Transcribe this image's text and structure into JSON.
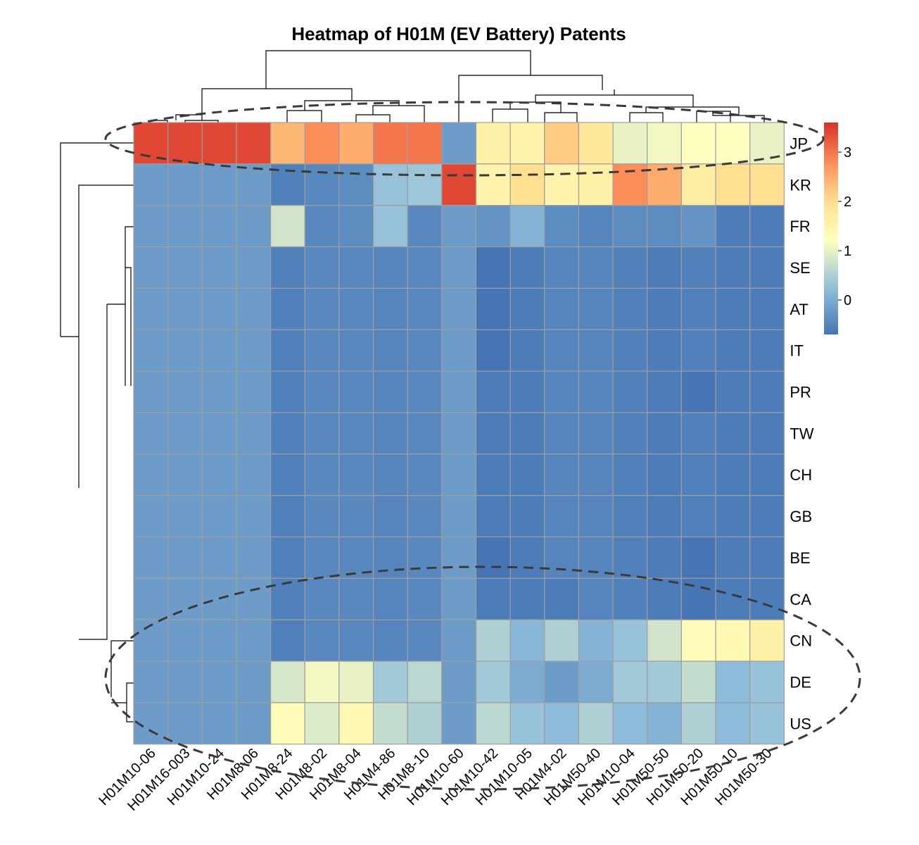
{
  "chart_data": {
    "type": "heatmap",
    "title": "Heatmap of H01M (EV Battery) Patents",
    "rows": [
      "JP",
      "KR",
      "FR",
      "SE",
      "AT",
      "IT",
      "PR",
      "TW",
      "CH",
      "GB",
      "BE",
      "CA",
      "CN",
      "DE",
      "US"
    ],
    "columns": [
      "H01M10-06",
      "H01M16-003",
      "H01M10-24",
      "H01M8-06",
      "H01M8-24",
      "H01M8-02",
      "H01M8-04",
      "H01M4-86",
      "H01M8-10",
      "H01M10-60",
      "H01M10-42",
      "H01M10-05",
      "H01M4-02",
      "H01M50-40",
      "H01M10-04",
      "H01M50-50",
      "H01M50-20",
      "H01M50-10",
      "H01M50-30"
    ],
    "values": [
      [
        3.4,
        3.4,
        3.4,
        3.4,
        2.4,
        2.8,
        2.5,
        3.0,
        3.0,
        -0.2,
        1.6,
        1.5,
        2.2,
        1.8,
        1.0,
        1.1,
        1.2,
        1.2,
        1.0
      ],
      [
        -0.2,
        -0.2,
        -0.2,
        -0.2,
        -0.55,
        -0.45,
        -0.4,
        0.3,
        0.35,
        3.4,
        1.5,
        2.0,
        1.5,
        1.6,
        2.8,
        2.5,
        1.7,
        2.0,
        2.0
      ],
      [
        -0.2,
        -0.2,
        -0.2,
        -0.2,
        0.8,
        -0.45,
        -0.4,
        0.3,
        -0.45,
        -0.2,
        -0.3,
        0.1,
        -0.4,
        -0.5,
        -0.4,
        -0.4,
        -0.3,
        -0.6,
        -0.6
      ],
      [
        -0.2,
        -0.2,
        -0.2,
        -0.2,
        -0.55,
        -0.45,
        -0.45,
        -0.5,
        -0.45,
        -0.2,
        -0.7,
        -0.6,
        -0.5,
        -0.5,
        -0.55,
        -0.6,
        -0.55,
        -0.6,
        -0.6
      ],
      [
        -0.2,
        -0.2,
        -0.2,
        -0.2,
        -0.55,
        -0.45,
        -0.45,
        -0.5,
        -0.45,
        -0.2,
        -0.7,
        -0.6,
        -0.5,
        -0.5,
        -0.55,
        -0.6,
        -0.55,
        -0.6,
        -0.6
      ],
      [
        -0.2,
        -0.2,
        -0.2,
        -0.2,
        -0.55,
        -0.45,
        -0.45,
        -0.5,
        -0.45,
        -0.2,
        -0.7,
        -0.6,
        -0.5,
        -0.5,
        -0.55,
        -0.6,
        -0.55,
        -0.6,
        -0.6
      ],
      [
        -0.2,
        -0.2,
        -0.2,
        -0.2,
        -0.55,
        -0.45,
        -0.45,
        -0.5,
        -0.45,
        -0.2,
        -0.6,
        -0.6,
        -0.5,
        -0.5,
        -0.55,
        -0.6,
        -0.7,
        -0.6,
        -0.6
      ],
      [
        -0.2,
        -0.2,
        -0.2,
        -0.2,
        -0.55,
        -0.45,
        -0.45,
        -0.5,
        -0.45,
        -0.2,
        -0.6,
        -0.6,
        -0.5,
        -0.5,
        -0.55,
        -0.6,
        -0.55,
        -0.6,
        -0.6
      ],
      [
        -0.2,
        -0.2,
        -0.2,
        -0.2,
        -0.55,
        -0.45,
        -0.45,
        -0.5,
        -0.45,
        -0.2,
        -0.6,
        -0.6,
        -0.5,
        -0.5,
        -0.55,
        -0.6,
        -0.55,
        -0.6,
        -0.6
      ],
      [
        -0.2,
        -0.2,
        -0.2,
        -0.2,
        -0.55,
        -0.45,
        -0.45,
        -0.5,
        -0.45,
        -0.2,
        -0.6,
        -0.6,
        -0.5,
        -0.5,
        -0.55,
        -0.6,
        -0.55,
        -0.6,
        -0.6
      ],
      [
        -0.2,
        -0.2,
        -0.2,
        -0.2,
        -0.55,
        -0.45,
        -0.45,
        -0.5,
        -0.45,
        -0.2,
        -0.7,
        -0.6,
        -0.5,
        -0.5,
        -0.55,
        -0.6,
        -0.7,
        -0.6,
        -0.6
      ],
      [
        -0.2,
        -0.2,
        -0.2,
        -0.2,
        -0.55,
        -0.45,
        -0.45,
        -0.5,
        -0.45,
        -0.2,
        -0.6,
        -0.6,
        -0.6,
        -0.5,
        -0.55,
        -0.6,
        -0.7,
        -0.6,
        -0.6
      ],
      [
        -0.2,
        -0.2,
        -0.2,
        -0.2,
        -0.55,
        -0.45,
        -0.45,
        -0.5,
        -0.45,
        -0.2,
        0.5,
        0.15,
        0.5,
        0.1,
        0.3,
        0.8,
        1.3,
        1.4,
        1.6
      ],
      [
        -0.2,
        -0.2,
        -0.2,
        -0.2,
        0.85,
        1.1,
        1.0,
        0.4,
        0.6,
        -0.2,
        0.4,
        0.0,
        -0.2,
        0.0,
        0.4,
        0.4,
        0.7,
        0.2,
        0.3
      ],
      [
        -0.2,
        -0.2,
        -0.2,
        -0.2,
        1.3,
        0.9,
        1.4,
        0.7,
        0.5,
        -0.2,
        0.6,
        0.3,
        0.2,
        0.5,
        0.2,
        0.1,
        0.5,
        0.2,
        0.3
      ]
    ],
    "legend": {
      "position": "right",
      "ticks": [
        0,
        1,
        2,
        3
      ],
      "range": [
        -0.7,
        3.6
      ]
    },
    "colors": {
      "low": "#4575b4",
      "mid": "#ffffbf",
      "high": "#d73027"
    },
    "annotations": [
      "dashed ellipse around JP row",
      "dashed ellipse around CN, DE, US rows"
    ]
  }
}
